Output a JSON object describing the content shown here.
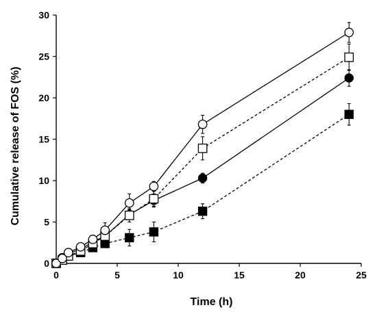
{
  "chart_data": {
    "type": "line",
    "title": "",
    "xlabel": "Time (h)",
    "ylabel": "Cumulative release of FOS (%)",
    "xlim": [
      0,
      25
    ],
    "ylim": [
      0,
      30
    ],
    "xticks": [
      0,
      5,
      10,
      15,
      20,
      25
    ],
    "yticks": [
      0,
      5,
      10,
      15,
      20,
      25,
      30
    ],
    "x_tick_labels": [
      "0",
      "5",
      "10",
      "15",
      "20",
      "25"
    ],
    "y_tick_labels": [
      "0",
      "5",
      "10",
      "15",
      "20",
      "25",
      "30"
    ],
    "grid": false,
    "legend": "none",
    "x": [
      0,
      0.5,
      1,
      2,
      3,
      4,
      6,
      8,
      12,
      24
    ],
    "series": [
      {
        "marker": "open-circle",
        "line": "solid",
        "color": "#000000",
        "values": [
          0,
          0.6,
          1.3,
          2.0,
          2.9,
          4.0,
          7.3,
          9.3,
          16.8,
          27.9
        ],
        "errors": [
          0,
          0.2,
          0.3,
          0.3,
          0.4,
          0.9,
          1.1,
          0.6,
          1.1,
          1.2
        ]
      },
      {
        "marker": "open-square",
        "line": "dashed",
        "color": "#000000",
        "values": [
          0,
          0.4,
          0.9,
          1.5,
          2.4,
          3.3,
          5.8,
          7.8,
          13.9,
          24.9
        ],
        "errors": [
          0,
          0.2,
          0.3,
          0.3,
          0.4,
          0.7,
          0.8,
          0.9,
          1.4,
          1.6
        ]
      },
      {
        "marker": "filled-circle",
        "line": "solid",
        "color": "#000000",
        "values": [
          0,
          0.7,
          1.2,
          1.7,
          2.6,
          3.3,
          5.9,
          7.6,
          10.3,
          22.4
        ],
        "errors": [
          0,
          0.2,
          0.3,
          0.3,
          0.3,
          0.5,
          0.6,
          0.8,
          0.6,
          1.0
        ]
      },
      {
        "marker": "filled-square",
        "line": "dashed",
        "color": "#000000",
        "values": [
          0,
          0.4,
          0.9,
          1.3,
          1.9,
          2.4,
          3.1,
          3.8,
          6.3,
          18.0
        ],
        "errors": [
          0,
          0.2,
          0.3,
          0.3,
          0.4,
          0.5,
          1.0,
          1.2,
          0.9,
          1.3
        ]
      }
    ]
  }
}
